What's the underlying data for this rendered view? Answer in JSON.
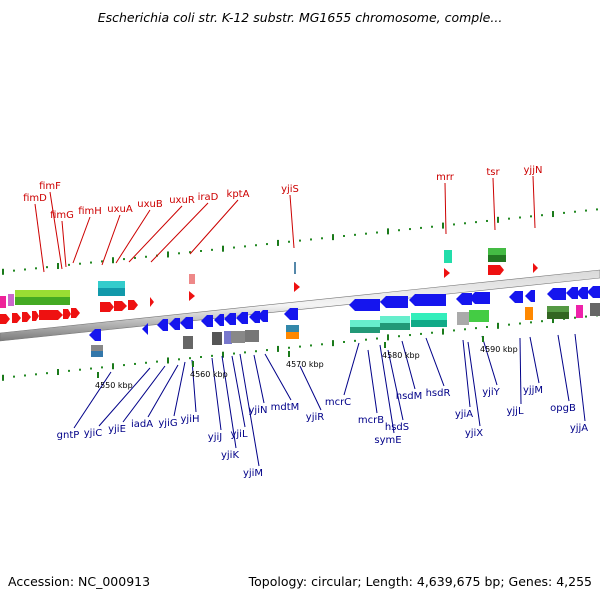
{
  "title": "Escherichia coli str. K-12 substr. MG1655 chromosome, comple...",
  "footer": {
    "accession": "Accession: NC_000913",
    "summary": "Topology: circular; Length: 4,639,675 bp; Genes: 4,255"
  },
  "colors": {
    "backbone": "#8a8a8a",
    "forward_strand": "#ee1111",
    "reverse_strand": "#1515ee",
    "top_label": "#cc0000",
    "bottom_label": "#000088",
    "tick_green": "#1a7a1a"
  },
  "scale_labels": [
    "4550 kbp",
    "4560 kbp",
    "4570 kbp",
    "4580 kbp",
    "4590 kbp"
  ],
  "top_genes": [
    "fimD",
    "fimF",
    "fimG",
    "fimH",
    "uxuA",
    "uxuB",
    "uxuR",
    "iraD",
    "kptA",
    "yjiS",
    "mrr",
    "tsr",
    "yjjN"
  ],
  "bottom_genes": [
    "gntP",
    "yjiC",
    "yjiE",
    "iadA",
    "yjiG",
    "yjiH",
    "yjiJ",
    "yjiK",
    "yjiL",
    "yjiM",
    "yjiN",
    "mdtM",
    "yjiR",
    "mcrC",
    "mcrB",
    "symE",
    "hsdS",
    "hsdM",
    "hsdR",
    "yjiA",
    "yjiX",
    "yjiY",
    "yjjL",
    "yjjM",
    "opgB",
    "yjjA"
  ]
}
